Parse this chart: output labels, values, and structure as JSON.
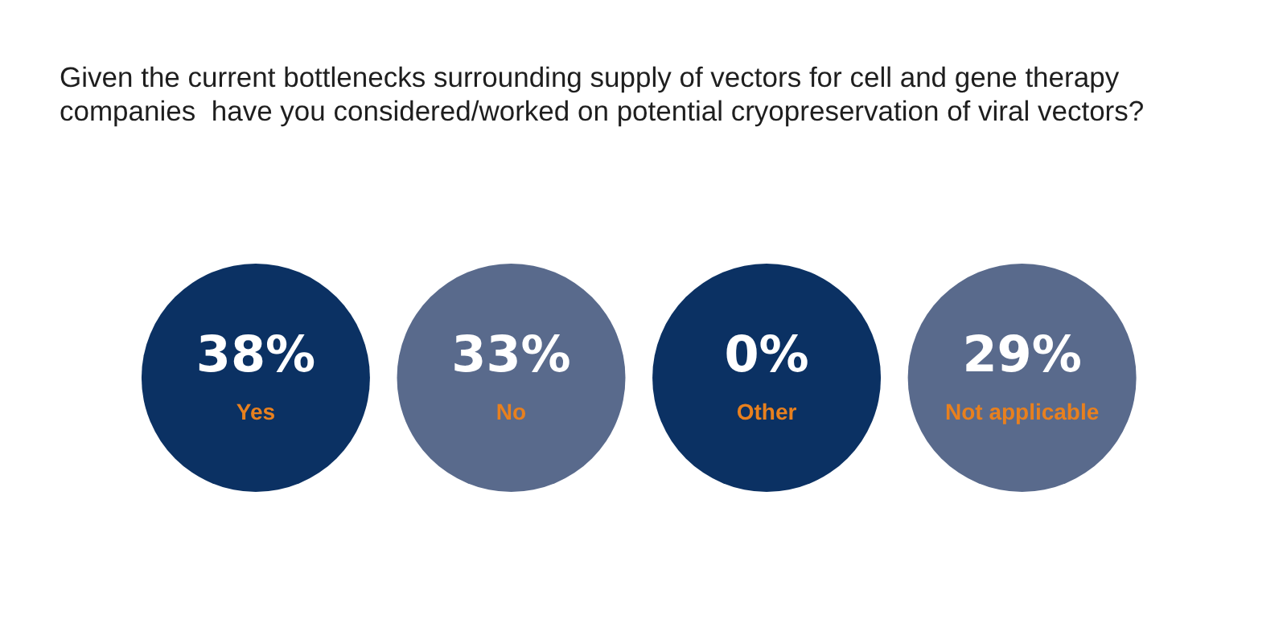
{
  "chart_data": {
    "type": "other",
    "title": "Given the current bottlenecks surrounding supply of vectors for cell and gene therapy companies  have you considered/worked on potential cryopreservation of viral vectors?",
    "categories": [
      "Yes",
      "No",
      "Other",
      "Not applicable"
    ],
    "values": [
      38,
      33,
      0,
      29
    ],
    "value_labels": [
      "38%",
      "33%",
      "0%",
      "29%"
    ],
    "colors": [
      "#0b3163",
      "#596a8c",
      "#0b3163",
      "#596a8c"
    ]
  }
}
